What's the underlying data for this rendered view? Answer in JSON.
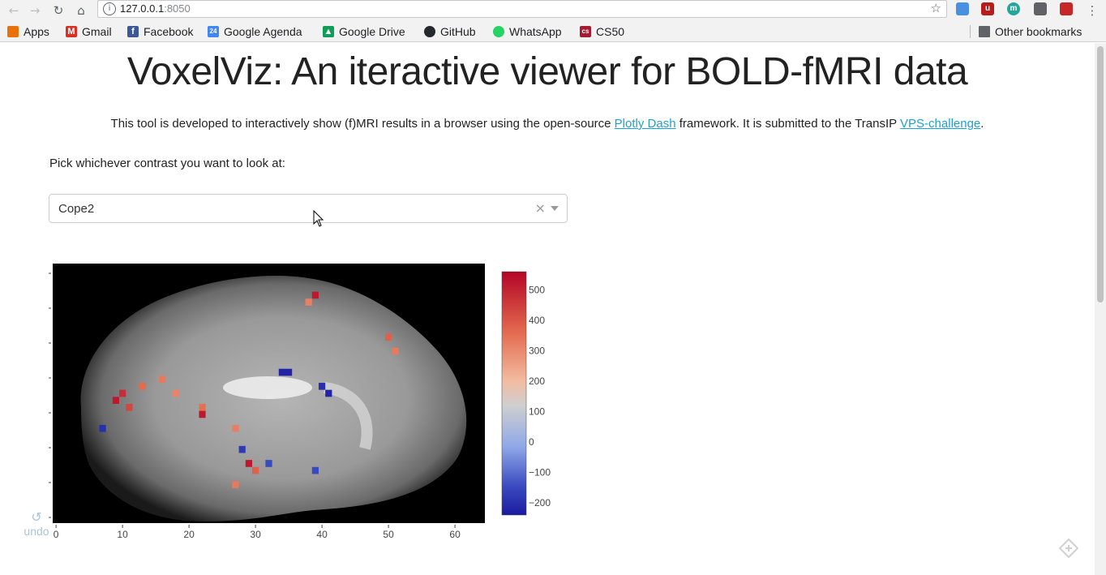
{
  "browser": {
    "url_host": "127.0.0.1",
    "url_port": ":8050",
    "nav_icons": [
      "back-arrow-icon",
      "forward-arrow-icon",
      "reload-icon",
      "home-icon"
    ],
    "extensions": [
      {
        "name": "extension-1-icon",
        "color": "#4a90e2",
        "text": ""
      },
      {
        "name": "ublock-icon",
        "color": "#b71c1c",
        "text": "ub"
      },
      {
        "name": "extension-m-icon",
        "color": "#26a69a",
        "text": "m"
      },
      {
        "name": "extension-bulb-icon",
        "color": "#5f6368",
        "text": ""
      },
      {
        "name": "extension-red-icon",
        "color": "#c62828",
        "text": ""
      }
    ]
  },
  "bookmarks": {
    "items": [
      {
        "label": "Apps",
        "icon": "apps-grid-icon",
        "color": "#e8710a"
      },
      {
        "label": "Gmail",
        "icon": "gmail-icon",
        "color": "#d93025"
      },
      {
        "label": "Facebook",
        "icon": "facebook-icon",
        "color": "#3b5998"
      },
      {
        "label": "Google Agenda",
        "icon": "calendar-icon",
        "color": "#4285f4"
      },
      {
        "label": "Google Drive",
        "icon": "drive-icon",
        "color": "#0f9d58"
      },
      {
        "label": "GitHub",
        "icon": "github-icon",
        "color": "#24292e"
      },
      {
        "label": "WhatsApp",
        "icon": "whatsapp-icon",
        "color": "#25d366"
      },
      {
        "label": "CS50",
        "icon": "cs50-icon",
        "color": "#a51c30"
      }
    ],
    "other": "Other bookmarks"
  },
  "page": {
    "title": "VoxelViz: An iteractive viewer for BOLD-fMRI data",
    "intro_before": "This tool is developed to interactively show (f)MRI results in a browser using the open-source ",
    "intro_link1": "Plotly Dash",
    "intro_middle": " framework. It is submitted to the TransIP ",
    "intro_link2": "VPS-challenge",
    "intro_after": ".",
    "pick_label": "Pick whichever contrast you want to look at:",
    "dropdown_value": "Cope2",
    "undo_label": "undo"
  },
  "chart_data": {
    "type": "heatmap",
    "title": "",
    "xlabel": "",
    "ylabel": "",
    "x_ticks": [
      0,
      10,
      20,
      30,
      40,
      50,
      60
    ],
    "x_range": [
      -0.5,
      64.5
    ],
    "y_range": [
      -0.5,
      36.5
    ],
    "colorscale": "RdBu-reversed (blue to gray to red)",
    "colorbar_ticks": [
      500,
      400,
      300,
      200,
      100,
      0,
      -100,
      -200
    ],
    "colorbar_range": [
      -240,
      560
    ],
    "background": "grayscale sagittal brain slice",
    "grid": false,
    "legend": "colorbar right",
    "overlay_clusters": [
      {
        "x": 10,
        "y": 18,
        "value": 480
      },
      {
        "x": 9,
        "y": 17,
        "value": 520
      },
      {
        "x": 11,
        "y": 16,
        "value": 430
      },
      {
        "x": 13,
        "y": 19,
        "value": 360
      },
      {
        "x": 16,
        "y": 20,
        "value": 330
      },
      {
        "x": 18,
        "y": 18,
        "value": 310
      },
      {
        "x": 22,
        "y": 16,
        "value": 350
      },
      {
        "x": 22,
        "y": 15,
        "value": 520
      },
      {
        "x": 27,
        "y": 13,
        "value": 320
      },
      {
        "x": 29,
        "y": 8,
        "value": 520
      },
      {
        "x": 30,
        "y": 7,
        "value": 380
      },
      {
        "x": 27,
        "y": 5,
        "value": 330
      },
      {
        "x": 39,
        "y": 32,
        "value": 520
      },
      {
        "x": 38,
        "y": 31,
        "value": 320
      },
      {
        "x": 50,
        "y": 26,
        "value": 380
      },
      {
        "x": 51,
        "y": 24,
        "value": 330
      },
      {
        "x": 34,
        "y": 21,
        "value": -220
      },
      {
        "x": 35,
        "y": 21,
        "value": -220
      },
      {
        "x": 40,
        "y": 19,
        "value": -200
      },
      {
        "x": 41,
        "y": 18,
        "value": -220
      },
      {
        "x": 7,
        "y": 13,
        "value": -200
      },
      {
        "x": 28,
        "y": 10,
        "value": -180
      },
      {
        "x": 32,
        "y": 8,
        "value": -150
      },
      {
        "x": 39,
        "y": 7,
        "value": -150
      }
    ]
  }
}
